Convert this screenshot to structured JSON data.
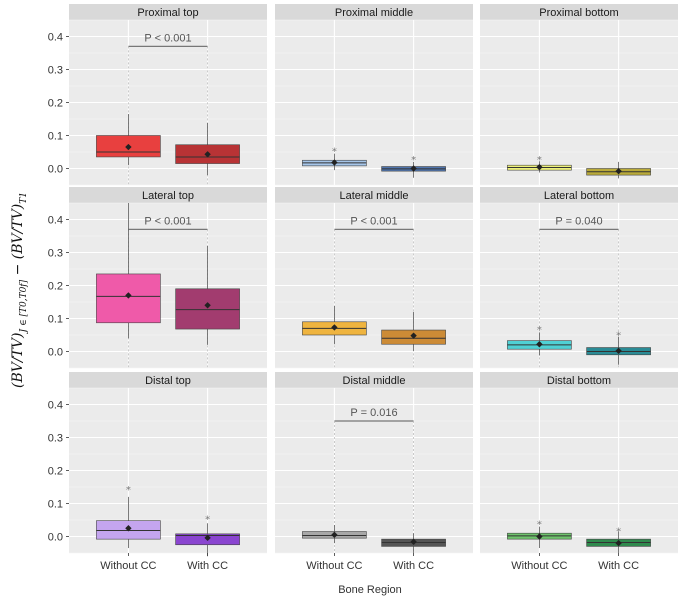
{
  "chart_data": {
    "type": "box",
    "xlabel": "Bone Region",
    "ylabel": {
      "main_a": "(BV/TV)",
      "sub_a": "J ∈ [T0,T0f]",
      "mid": " − (BV/TV)",
      "sub_b": "T1"
    },
    "categories": [
      "Without CC",
      "With CC"
    ],
    "ylim": [
      -0.05,
      0.45
    ],
    "yticks": [
      "0.0",
      "0.1",
      "0.2",
      "0.3",
      "0.4"
    ],
    "panels": [
      {
        "title": "Proximal top",
        "pvalue": "P < 0.001",
        "bracket_y": 0.37,
        "boxes": [
          {
            "category": "Without CC",
            "color": "#e8403f",
            "q1": 0.035,
            "median": 0.05,
            "q3": 0.1,
            "whisker_low": 0.01,
            "whisker_high": 0.165,
            "mean": 0.065,
            "outliers": []
          },
          {
            "category": "With CC",
            "color": "#b83335",
            "q1": 0.015,
            "median": 0.035,
            "q3": 0.072,
            "whisker_low": -0.02,
            "whisker_high": 0.138,
            "mean": 0.043,
            "outliers": []
          }
        ]
      },
      {
        "title": "Proximal middle",
        "pvalue": "",
        "bracket_y": null,
        "boxes": [
          {
            "category": "Without CC",
            "color": "#a6c6ea",
            "q1": 0.008,
            "median": 0.017,
            "q3": 0.025,
            "whisker_low": -0.005,
            "whisker_high": 0.045,
            "mean": 0.018,
            "outliers": [
              0.06
            ]
          },
          {
            "category": "With CC",
            "color": "#4f74ae",
            "q1": -0.008,
            "median": -0.001,
            "q3": 0.006,
            "whisker_low": -0.028,
            "whisker_high": 0.02,
            "mean": 0.0,
            "outliers": [
              0.035
            ]
          }
        ]
      },
      {
        "title": "Proximal bottom",
        "pvalue": "",
        "bracket_y": null,
        "boxes": [
          {
            "category": "Without CC",
            "color": "#eef17b",
            "q1": -0.005,
            "median": 0.003,
            "q3": 0.01,
            "whisker_low": -0.012,
            "whisker_high": 0.022,
            "mean": 0.004,
            "outliers": [
              0.035
            ]
          },
          {
            "category": "With CC",
            "color": "#b9aa3a",
            "q1": -0.02,
            "median": -0.01,
            "q3": 0.0,
            "whisker_low": -0.03,
            "whisker_high": 0.02,
            "mean": -0.008,
            "outliers": []
          }
        ]
      },
      {
        "title": "Lateral top",
        "pvalue": "P < 0.001",
        "bracket_y": 0.37,
        "boxes": [
          {
            "category": "Without CC",
            "color": "#ef5aa9",
            "q1": 0.087,
            "median": 0.167,
            "q3": 0.235,
            "whisker_low": 0.04,
            "whisker_high": 0.45,
            "mean": 0.17,
            "outliers": []
          },
          {
            "category": "With CC",
            "color": "#a23c6f",
            "q1": 0.068,
            "median": 0.127,
            "q3": 0.19,
            "whisker_low": 0.02,
            "whisker_high": 0.32,
            "mean": 0.14,
            "outliers": []
          }
        ]
      },
      {
        "title": "Lateral middle",
        "pvalue": "P < 0.001",
        "bracket_y": 0.37,
        "boxes": [
          {
            "category": "Without CC",
            "color": "#efb43f",
            "q1": 0.05,
            "median": 0.07,
            "q3": 0.09,
            "whisker_low": 0.022,
            "whisker_high": 0.138,
            "mean": 0.073,
            "outliers": []
          },
          {
            "category": "With CC",
            "color": "#cc8b36",
            "q1": 0.022,
            "median": 0.04,
            "q3": 0.065,
            "whisker_low": 0.002,
            "whisker_high": 0.12,
            "mean": 0.048,
            "outliers": []
          }
        ]
      },
      {
        "title": "Lateral bottom",
        "pvalue": "P = 0.040",
        "bracket_y": 0.37,
        "boxes": [
          {
            "category": "Without CC",
            "color": "#4fd1d5",
            "q1": 0.007,
            "median": 0.02,
            "q3": 0.033,
            "whisker_low": -0.012,
            "whisker_high": 0.058,
            "mean": 0.022,
            "outliers": [
              0.075
            ]
          },
          {
            "category": "With CC",
            "color": "#2a8b95",
            "q1": -0.01,
            "median": 0.0,
            "q3": 0.012,
            "whisker_low": -0.04,
            "whisker_high": 0.045,
            "mean": 0.002,
            "outliers": [
              0.058
            ]
          }
        ]
      },
      {
        "title": "Distal top",
        "pvalue": "",
        "bracket_y": null,
        "boxes": [
          {
            "category": "Without CC",
            "color": "#c4a5ef",
            "q1": -0.008,
            "median": 0.018,
            "q3": 0.048,
            "whisker_low": -0.035,
            "whisker_high": 0.12,
            "mean": 0.025,
            "outliers": [
              0.15
            ]
          },
          {
            "category": "With CC",
            "color": "#8a45d0",
            "q1": -0.025,
            "median": 0.003,
            "q3": 0.008,
            "whisker_low": -0.06,
            "whisker_high": 0.04,
            "mean": -0.004,
            "outliers": [
              0.06
            ]
          }
        ]
      },
      {
        "title": "Distal middle",
        "pvalue": "P = 0.016",
        "bracket_y": 0.35,
        "boxes": [
          {
            "category": "Without CC",
            "color": "#a8a8a8",
            "q1": -0.005,
            "median": 0.003,
            "q3": 0.015,
            "whisker_low": -0.02,
            "whisker_high": 0.035,
            "mean": 0.005,
            "outliers": []
          },
          {
            "category": "With CC",
            "color": "#555555",
            "q1": -0.03,
            "median": -0.018,
            "q3": -0.008,
            "whisker_low": -0.05,
            "whisker_high": 0.01,
            "mean": -0.016,
            "outliers": []
          }
        ]
      },
      {
        "title": "Distal bottom",
        "pvalue": "",
        "bracket_y": null,
        "boxes": [
          {
            "category": "Without CC",
            "color": "#6ec36c",
            "q1": -0.008,
            "median": 0.002,
            "q3": 0.01,
            "whisker_low": -0.035,
            "whisker_high": 0.03,
            "mean": 0.0,
            "outliers": [
              0.045
            ]
          },
          {
            "category": "With CC",
            "color": "#2f8a4d",
            "q1": -0.03,
            "median": -0.018,
            "q3": -0.008,
            "whisker_low": -0.05,
            "whisker_high": 0.015,
            "mean": -0.02,
            "outliers": [
              0.025
            ]
          }
        ]
      }
    ]
  }
}
